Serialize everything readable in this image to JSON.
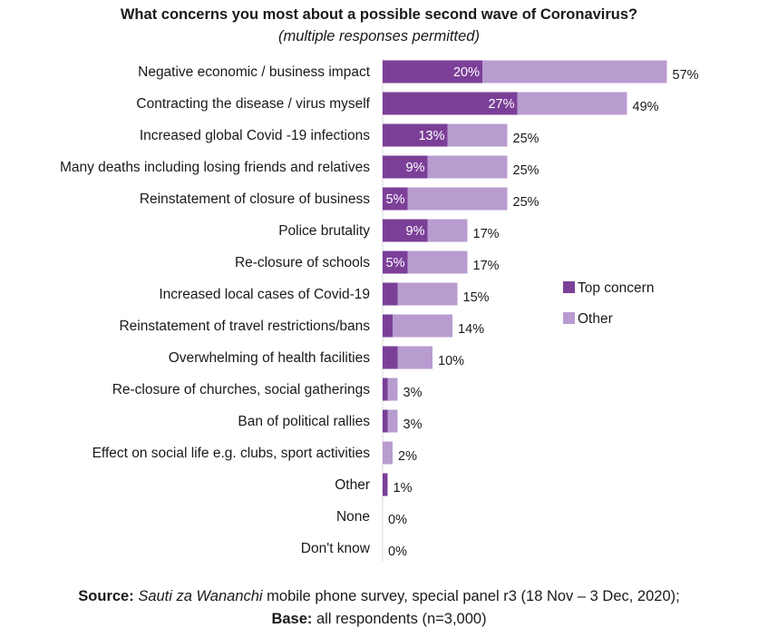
{
  "title": "What concerns you most about a possible second wave of Coronavirus?",
  "subtitle": "(multiple responses permitted)",
  "chart_data": {
    "type": "bar",
    "orientation": "horizontal",
    "stacked": true,
    "categories": [
      "Negative economic / business impact",
      "Contracting the disease / virus myself",
      "Increased global Covid -19 infections",
      "Many deaths including losing friends and relatives",
      "Reinstatement of closure of business",
      "Police brutality",
      "Re-closure of schools",
      "Increased local cases of Covid-19",
      "Reinstatement of travel restrictions/bans",
      "Overwhelming of health facilities",
      "Re-closure of churches, social gatherings",
      "Ban of political rallies",
      "Effect on social life e.g. clubs, sport activities",
      "Other",
      "None",
      "Don't know"
    ],
    "series": [
      {
        "name": "Top concern",
        "color": "#7b3f98",
        "values": [
          20,
          27,
          13,
          9,
          5,
          9,
          5,
          3,
          2,
          3,
          1,
          1,
          0,
          1,
          0,
          0
        ],
        "labels": [
          "20%",
          "27%",
          "13%",
          "9%",
          "5%",
          "9%",
          "5%",
          "",
          "",
          "",
          "",
          "",
          "",
          "",
          "",
          ""
        ]
      },
      {
        "name": "Other",
        "color": "#b89cd0",
        "values": [
          37,
          22,
          12,
          16,
          20,
          8,
          12,
          12,
          12,
          7,
          2,
          2,
          2,
          0,
          0,
          0
        ]
      }
    ],
    "totals": [
      "57%",
      "49%",
      "25%",
      "25%",
      "25%",
      "17%",
      "17%",
      "15%",
      "14%",
      "10%",
      "3%",
      "3%",
      "2%",
      "1%",
      "0%",
      "0%"
    ],
    "xlim": [
      0,
      57
    ],
    "grid": false,
    "legend_position": "right"
  },
  "footer": {
    "source_label": "Source:",
    "source_title": "Sauti za Wananchi",
    "source_text": " mobile phone survey, special panel r3 (18 Nov – 3 Dec, 2020);",
    "base_label": "Base:",
    "base_text": " all respondents (n=3,000)"
  }
}
